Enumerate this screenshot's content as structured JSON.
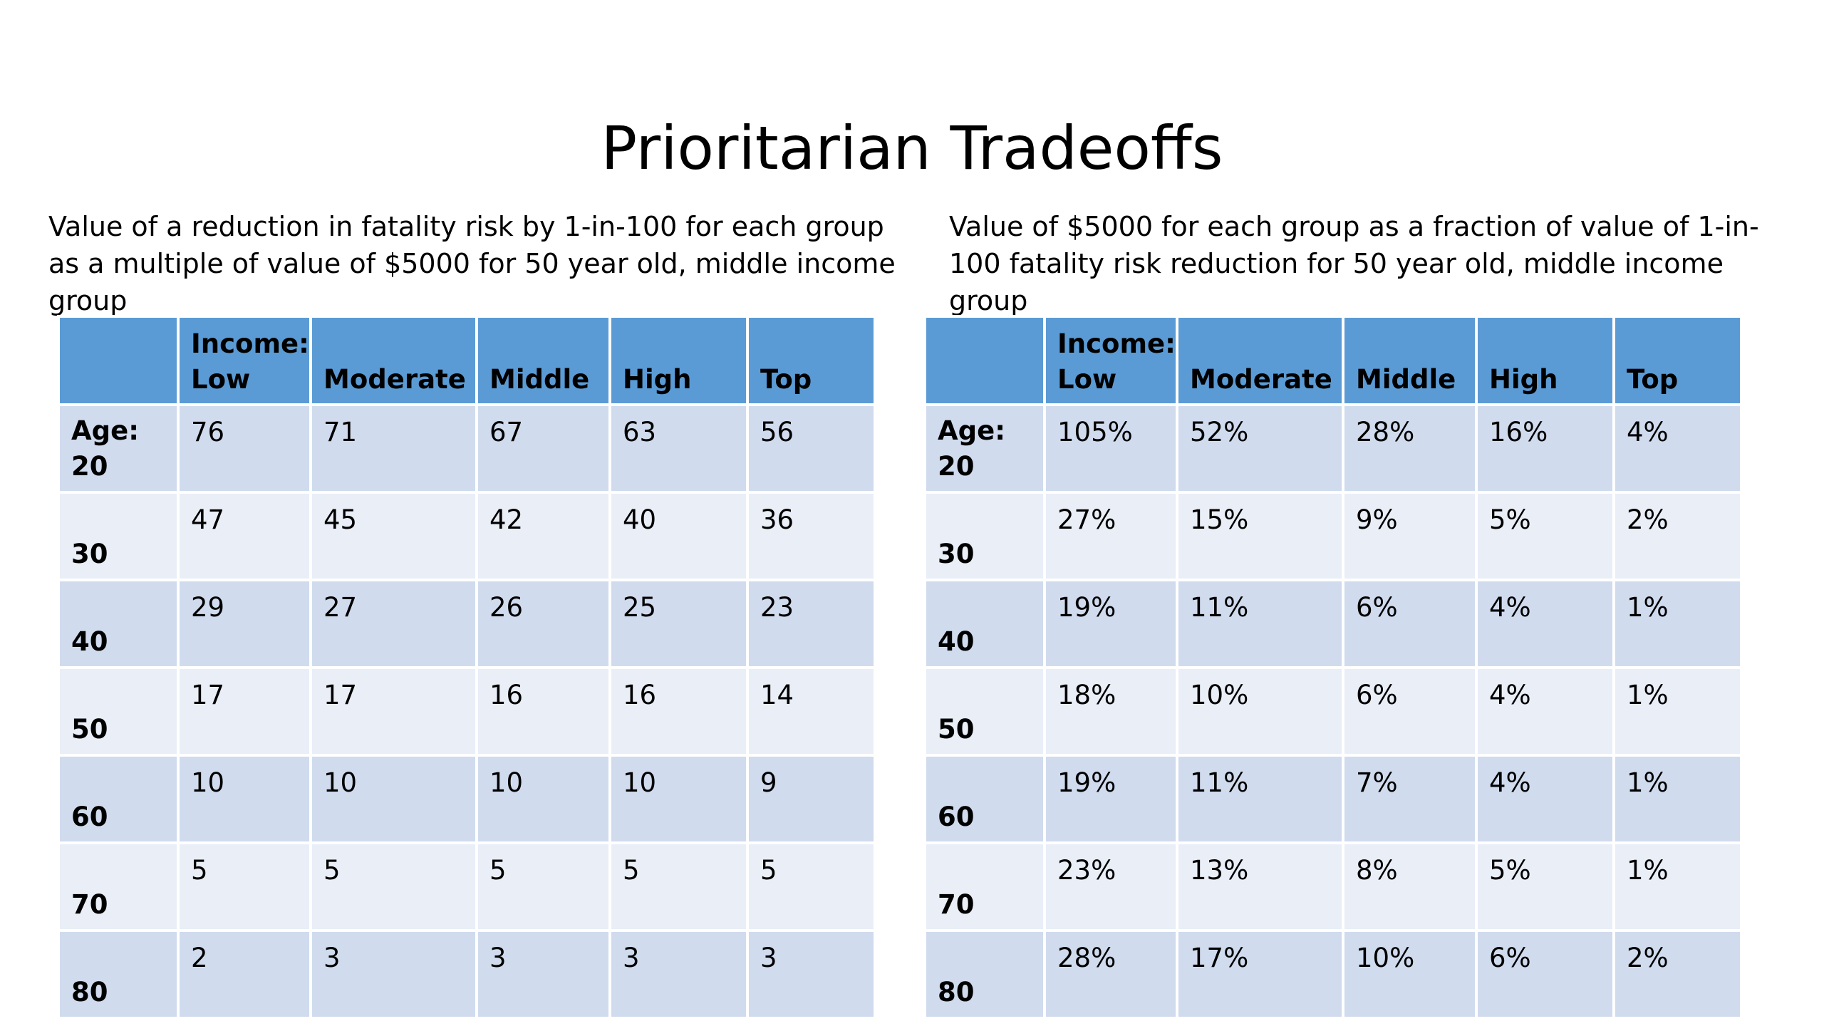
{
  "title": "Prioritarian Tradeoffs",
  "left": {
    "caption": "Value of a reduction in fatality risk by 1-in-100 for each group as a multiple of value of $5000 for 50 year old, middle income group",
    "header": {
      "corner": "",
      "income_label": "Income:",
      "columns": [
        "Low",
        "Moderate",
        "Middle",
        "High",
        "Top"
      ]
    },
    "age_label": "Age:",
    "rows": [
      {
        "age": "20",
        "cells": [
          "76",
          "71",
          "67",
          "63",
          "56"
        ]
      },
      {
        "age": "30",
        "cells": [
          "47",
          "45",
          "42",
          "40",
          "36"
        ]
      },
      {
        "age": "40",
        "cells": [
          "29",
          "27",
          "26",
          "25",
          "23"
        ]
      },
      {
        "age": "50",
        "cells": [
          "17",
          "17",
          "16",
          "16",
          "14"
        ]
      },
      {
        "age": "60",
        "cells": [
          "10",
          "10",
          "10",
          "10",
          "9"
        ]
      },
      {
        "age": "70",
        "cells": [
          "5",
          "5",
          "5",
          "5",
          "5"
        ]
      },
      {
        "age": "80",
        "cells": [
          "2",
          "3",
          "3",
          "3",
          "3"
        ]
      }
    ]
  },
  "right": {
    "caption": "Value of $5000 for each group as a fraction of value of 1-in-100 fatality risk reduction for 50 year old, middle income group",
    "header": {
      "corner": "",
      "income_label": "Income:",
      "columns": [
        "Low",
        "Moderate",
        "Middle",
        "High",
        "Top"
      ]
    },
    "age_label": "Age:",
    "rows": [
      {
        "age": "20",
        "cells": [
          "105%",
          "52%",
          "28%",
          "16%",
          "4%"
        ]
      },
      {
        "age": "30",
        "cells": [
          "27%",
          "15%",
          "9%",
          "5%",
          "2%"
        ]
      },
      {
        "age": "40",
        "cells": [
          "19%",
          "11%",
          "6%",
          "4%",
          "1%"
        ]
      },
      {
        "age": "50",
        "cells": [
          "18%",
          "10%",
          "6%",
          "4%",
          "1%"
        ]
      },
      {
        "age": "60",
        "cells": [
          "19%",
          "11%",
          "7%",
          "4%",
          "1%"
        ]
      },
      {
        "age": "70",
        "cells": [
          "23%",
          "13%",
          "8%",
          "5%",
          "1%"
        ]
      },
      {
        "age": "80",
        "cells": [
          "28%",
          "17%",
          "10%",
          "6%",
          "2%"
        ]
      }
    ]
  },
  "colors": {
    "header": "#5b9bd5",
    "row_dark": "#d0dbee",
    "row_light": "#e9eef7"
  }
}
